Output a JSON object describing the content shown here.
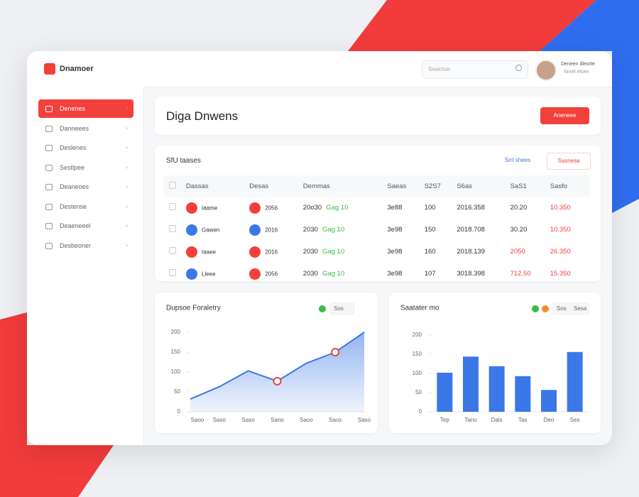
{
  "header": {
    "brand": "Dnamoer",
    "search": "Seaictoe",
    "user_name": "Deneen dleorte",
    "user_role": "Nnrel elsen"
  },
  "sidebar": [
    "Denenes",
    "Danneees",
    "Deslenes",
    "Sestlpee",
    "Deaneoes",
    "Destense",
    "Deaeneeel",
    "Desbeoner"
  ],
  "page": {
    "title": "Diga Dnwens",
    "button": "Aneneee"
  },
  "table": {
    "title": "SfU taases",
    "tabs": [
      "Srrt shees",
      "Sasnesa"
    ],
    "headers": [
      "Dassas",
      "Desas",
      "Demmas",
      "Saeas",
      "S2S7",
      "S6as",
      "SaS1",
      "Sasfo"
    ],
    "avatar_colors": [
      "#f2403c",
      "#3b78e7",
      "#f2403c",
      "#3b78e7"
    ],
    "badge_colors": [
      "#f2403c",
      "#3b78e7",
      "#f2403c",
      "#f2403c"
    ],
    "rows": [
      [
        "Iaame",
        "2056",
        "20o30",
        "Gag 10",
        "3e88",
        "100",
        "2016.358",
        "20.20",
        "10.350"
      ],
      [
        "Gawen",
        "2016",
        "2030",
        "Gag 10",
        "3e98",
        "150",
        "2018.708",
        "30.20",
        "10.350"
      ],
      [
        "Iaaee",
        "2016",
        "2030",
        "Gag 10",
        "3e98",
        "160",
        "2018.139",
        "2050",
        "26.350"
      ],
      [
        "Lleee",
        "2056",
        "2030",
        "Gag 10",
        "3e98",
        "107",
        "3018.398",
        "712.50",
        "15.350"
      ]
    ]
  },
  "chart_data": [
    {
      "type": "line",
      "title": "Dupsoe Foraletry",
      "legend": [
        "Sos"
      ],
      "legend_colors": [
        "#3dbb4a"
      ],
      "categories": [
        "Saoo",
        "Saso",
        "Saso",
        "Sano",
        "Saoo",
        "Saos",
        "Saso"
      ],
      "values": [
        32,
        63,
        103,
        77,
        122,
        150,
        200
      ],
      "color": "#3b78e7",
      "ylim": [
        0,
        200
      ],
      "yticks": [
        0,
        50,
        100,
        150,
        200
      ]
    },
    {
      "type": "bar",
      "title": "Saatater mo",
      "legend": [
        "Sos",
        "Sesa"
      ],
      "legend_colors": [
        "#3dbb4a",
        "#f28c28"
      ],
      "categories": [
        "Tep",
        "Tano",
        "Dals",
        "Tas",
        "Deo",
        "Ses"
      ],
      "values": [
        102,
        144,
        119,
        93,
        57,
        156
      ],
      "color": "#3b78e7",
      "ylim": [
        0,
        200
      ],
      "yticks": [
        0,
        50,
        100,
        150,
        200
      ]
    }
  ]
}
